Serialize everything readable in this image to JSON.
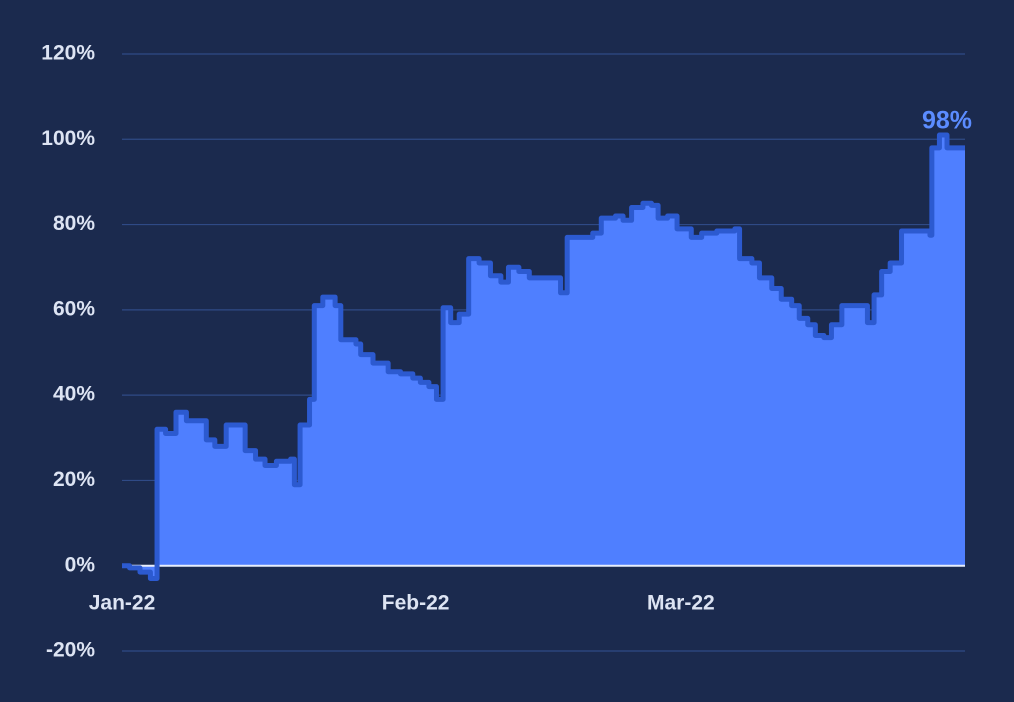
{
  "chart_data": {
    "type": "step-area",
    "x": [
      0,
      0.8,
      1.9,
      3.0,
      3.7,
      4.6,
      5.7,
      6.8,
      8.3,
      8.9,
      9.8,
      11.0,
      12.5,
      13.0,
      14.1,
      15.1,
      16.3,
      17.8,
      18.2,
      18.8,
      19.8,
      20.3,
      21.2,
      22.5,
      23.1,
      24.7,
      25.2,
      26.5,
      28.1,
      29.4,
      30.7,
      31.5,
      32.4,
      33.2,
      33.9,
      34.7,
      35.6,
      36.6,
      37.7,
      38.9,
      40.0,
      40.8,
      41.9,
      43.0,
      46.3,
      47.0,
      49.7,
      50.6,
      52.1,
      52.9,
      53.8,
      55.0,
      55.9,
      56.6,
      57.6,
      58.6,
      60.1,
      61.2,
      62.8,
      64.7,
      65.2,
      66.5,
      67.3,
      68.6,
      69.6,
      70.7,
      71.5,
      72.4,
      73.2,
      74.1,
      74.9,
      76.0,
      78.7,
      79.4,
      80.2,
      81.1,
      82.3,
      85.3,
      85.5,
      86.3,
      87.1
    ],
    "values": [
      0,
      -0.5,
      -1.5,
      -3,
      32,
      31,
      36,
      34,
      34,
      29.5,
      28,
      33,
      33,
      27,
      25,
      23.5,
      24.5,
      25,
      19,
      33,
      39,
      61,
      63,
      61,
      53,
      52,
      49.5,
      47.5,
      45.5,
      45,
      44,
      43,
      42,
      39,
      60.5,
      57,
      59,
      72,
      71,
      68,
      66.5,
      70,
      69,
      67.5,
      64,
      77,
      78,
      81.5,
      82,
      81,
      84,
      85,
      84.5,
      81.5,
      82,
      79,
      77,
      78,
      78.5,
      79,
      72,
      71,
      67.5,
      65,
      62.5,
      61,
      58,
      56.5,
      54,
      53.5,
      56.5,
      61,
      57,
      63.5,
      69,
      71,
      78.5,
      77.5,
      98,
      101,
      98
    ],
    "value_labels": [
      null,
      null,
      null,
      null,
      null,
      null,
      null,
      null,
      null,
      null,
      null,
      null,
      null,
      null,
      null,
      null,
      null,
      null,
      null,
      null,
      null,
      null,
      null,
      null,
      null,
      null,
      null,
      null,
      null,
      null,
      null,
      null,
      null,
      null,
      null,
      null,
      null,
      null,
      null,
      null,
      null,
      null,
      null,
      null,
      null,
      null,
      null,
      null,
      null,
      null,
      null,
      null,
      null,
      null,
      null,
      null,
      null,
      null,
      null,
      null,
      null,
      null,
      null,
      null,
      null,
      null,
      null,
      null,
      null,
      null,
      null,
      null,
      null,
      null,
      null,
      null,
      null,
      null,
      null,
      null,
      "98%"
    ],
    "color": "#4f7fff",
    "line_color": "#2c5ad0",
    "label_color": "#5b8cff",
    "xlim": [
      0,
      89
    ],
    "xticks": [
      {
        "value": 0,
        "label": "Jan-22"
      },
      {
        "value": 31,
        "label": "Feb-22"
      },
      {
        "value": 59,
        "label": "Mar-22"
      }
    ],
    "ylim": [
      -20,
      120
    ],
    "yticks": [
      {
        "value": -20,
        "label": "-20%"
      },
      {
        "value": 0,
        "label": "0%"
      },
      {
        "value": 20,
        "label": "20%"
      },
      {
        "value": 40,
        "label": "40%"
      },
      {
        "value": 60,
        "label": "60%"
      },
      {
        "value": 80,
        "label": "80%"
      },
      {
        "value": 100,
        "label": "100%"
      },
      {
        "value": 120,
        "label": "120%"
      }
    ],
    "grid": true
  }
}
